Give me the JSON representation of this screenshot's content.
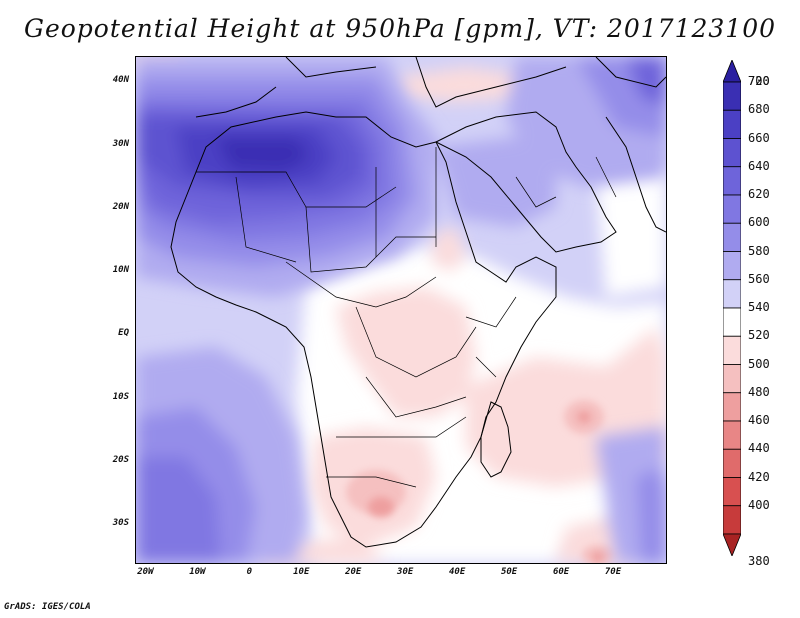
{
  "title": "Geopotential Height at 950hPa [gpm], VT: 2017123100",
  "credit": "GrADS: IGES/COLA",
  "map": {
    "variable": "Geopotential Height",
    "level": "950hPa",
    "units": "gpm",
    "valid_time": "2017123100",
    "lat_range": [
      -36,
      44
    ],
    "lon_range": [
      -22,
      80
    ],
    "lat_ticks": [
      {
        "value": 40,
        "label": "40N"
      },
      {
        "value": 30,
        "label": "30N"
      },
      {
        "value": 20,
        "label": "20N"
      },
      {
        "value": 10,
        "label": "10N"
      },
      {
        "value": 0,
        "label": "EQ"
      },
      {
        "value": -10,
        "label": "10S"
      },
      {
        "value": -20,
        "label": "20S"
      },
      {
        "value": -30,
        "label": "30S"
      }
    ],
    "lon_ticks": [
      {
        "value": -20,
        "label": "20W"
      },
      {
        "value": -10,
        "label": "10W"
      },
      {
        "value": 0,
        "label": "0"
      },
      {
        "value": 10,
        "label": "10E"
      },
      {
        "value": 20,
        "label": "20E"
      },
      {
        "value": 30,
        "label": "30E"
      },
      {
        "value": 40,
        "label": "40E"
      },
      {
        "value": 50,
        "label": "50E"
      },
      {
        "value": 60,
        "label": "60E"
      },
      {
        "value": 70,
        "label": "70E"
      }
    ],
    "features": {
      "sahara_high": "Maximum near 700 gpm over Algeria/Libya",
      "southern_low": "Minimum near 480-500 gpm over Botswana/South Africa",
      "madagascar_low": "Minimum near 500 gpm east of Madagascar"
    }
  },
  "colorbar": {
    "levels": [
      {
        "label": "720",
        "color": "#2b1fa0"
      },
      {
        "label": "700",
        "color": "#3a2fb3"
      },
      {
        "label": "680",
        "color": "#4b40c4"
      },
      {
        "label": "660",
        "color": "#5d52d0"
      },
      {
        "label": "640",
        "color": "#6e64da"
      },
      {
        "label": "620",
        "color": "#8077e2"
      },
      {
        "label": "600",
        "color": "#948de9"
      },
      {
        "label": "580",
        "color": "#b0abf0"
      },
      {
        "label": "560",
        "color": "#d2d1f7"
      },
      {
        "label": "540",
        "color": "#ffffff"
      },
      {
        "label": "520",
        "color": "#fbdcdc"
      },
      {
        "label": "500",
        "color": "#f5c0c0"
      },
      {
        "label": "480",
        "color": "#ee9f9f"
      },
      {
        "label": "460",
        "color": "#e88686"
      },
      {
        "label": "440",
        "color": "#e06b6b"
      },
      {
        "label": "420",
        "color": "#d85050"
      },
      {
        "label": "400",
        "color": "#c73b3b"
      },
      {
        "label": "380",
        "color": "#a82323"
      }
    ]
  }
}
